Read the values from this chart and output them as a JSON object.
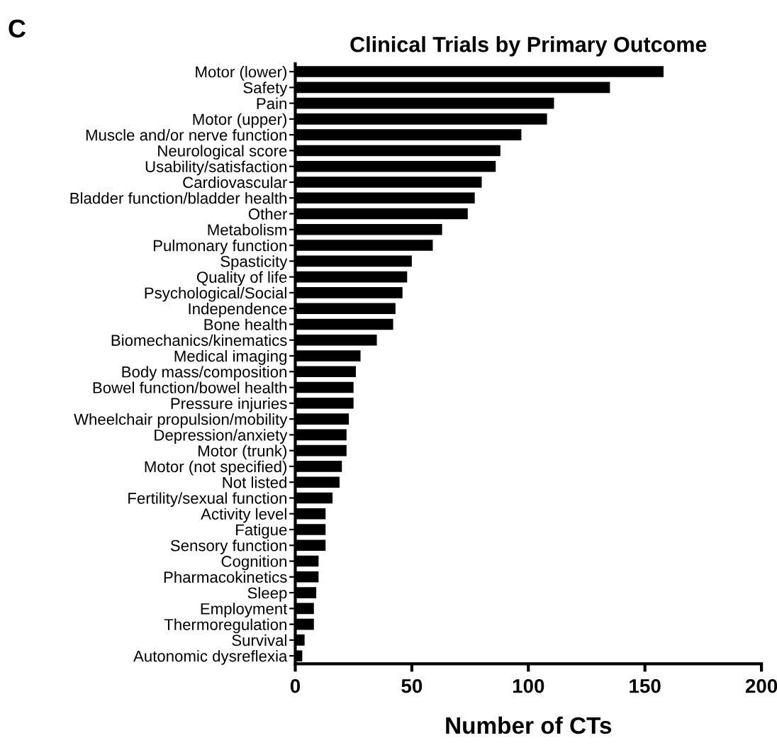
{
  "chart_data": {
    "type": "bar",
    "orientation": "horizontal",
    "title": "Clinical Trials by Primary Outcome",
    "xlabel": "Number of CTs",
    "annotations": [
      "C"
    ],
    "categories": [
      "Motor (lower)",
      "Safety",
      "Pain",
      "Motor (upper)",
      "Muscle and/or nerve function",
      "Neurological score",
      "Usability/satisfaction",
      "Cardiovascular",
      "Bladder function/bladder health",
      "Other",
      "Metabolism",
      "Pulmonary function",
      "Spasticity",
      "Quality of life",
      "Psychological/Social",
      "Independence",
      "Bone health",
      "Biomechanics/kinematics",
      "Medical imaging",
      "Body mass/composition",
      "Bowel function/bowel health",
      "Pressure injuries",
      "Wheelchair propulsion/mobility",
      "Depression/anxiety",
      "Motor (trunk)",
      "Motor (not specified)",
      "Not listed",
      "Fertility/sexual function",
      "Activity level",
      "Fatigue",
      "Sensory function",
      "Cognition",
      "Pharmacokinetics",
      "Sleep",
      "Employment",
      "Thermoregulation",
      "Survival",
      "Autonomic dysreflexia"
    ],
    "values": [
      158,
      135,
      111,
      108,
      97,
      88,
      86,
      80,
      77,
      74,
      63,
      59,
      50,
      48,
      46,
      43,
      42,
      35,
      28,
      26,
      25,
      25,
      23,
      22,
      22,
      20,
      19,
      16,
      13,
      13,
      13,
      10,
      10,
      9,
      8,
      8,
      4,
      3
    ],
    "color": "#000000",
    "xlim": [
      0,
      200
    ],
    "xticks": [
      0,
      50,
      100,
      150,
      200
    ],
    "grid": false
  }
}
